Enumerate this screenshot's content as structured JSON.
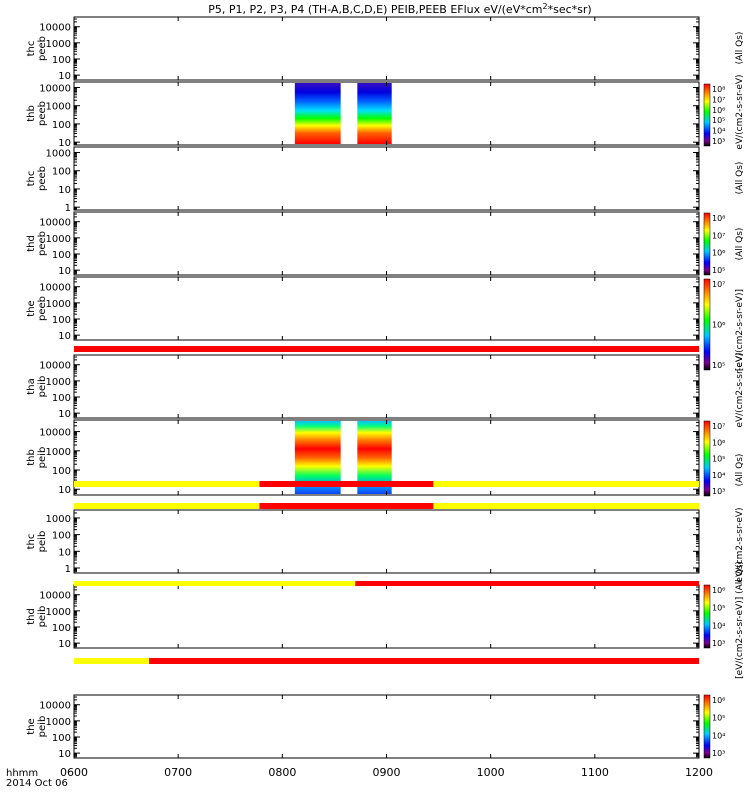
{
  "chart_data": {
    "type": "heatmap",
    "title": "P5, P1, P2, P3, P4 (TH-A,B,C,D,E) PEIB,PEEB EFlux eV/(eV*cm",
    "title_sup": "2",
    "title_tail": "*sec*sr)",
    "x_axis": {
      "labels_header": [
        "hhmm",
        "2014 Oct 06"
      ],
      "ticks": [
        "0600",
        "0700",
        "0800",
        "0900",
        "1000",
        "1100",
        "1200"
      ],
      "range": [
        "0600",
        "1200"
      ]
    },
    "panels": [
      {
        "ylabel": [
          "thc",
          "peeb"
        ],
        "ticks": [
          "10000",
          "1000",
          "100",
          "10"
        ],
        "ylim": [
          5,
          40000
        ],
        "log": true,
        "has_colorbar": false,
        "colorbar_ticks": []
      },
      {
        "ylabel": [
          "thb",
          "peeb"
        ],
        "ticks": [
          "10000",
          "1000",
          "100",
          "10"
        ],
        "ylim": [
          7,
          20000
        ],
        "log": true,
        "has_colorbar": true,
        "colorbar_ticks": [
          "10⁸",
          "10⁷",
          "10⁶",
          "10⁵",
          "10⁴",
          "10³"
        ],
        "data_blocks": [
          {
            "start": "0812",
            "end": "0856"
          },
          {
            "start": "0872",
            "end": "0905"
          }
        ]
      },
      {
        "ylabel": [
          "thc",
          "peeb"
        ],
        "ticks": [
          "1000",
          "100",
          "10",
          "1"
        ],
        "ylim": [
          0.7,
          2000
        ],
        "log": true,
        "has_colorbar": false,
        "colorbar_ticks": []
      },
      {
        "ylabel": [
          "thd",
          "peeb"
        ],
        "ticks": [
          "10000",
          "1000",
          "100",
          "10"
        ],
        "ylim": [
          5,
          40000
        ],
        "log": true,
        "has_colorbar": true,
        "colorbar_ticks": [
          "10⁸",
          "10⁷",
          "10⁶",
          "10⁵"
        ]
      },
      {
        "ylabel": [
          "the",
          "peeb"
        ],
        "ticks": [
          "10000",
          "1000",
          "100",
          "10"
        ],
        "ylim": [
          5,
          40000
        ],
        "log": true,
        "has_colorbar": true,
        "colorbar_ticks": [
          "10⁷",
          "10⁶",
          "10⁵"
        ]
      },
      {
        "ylabel": [
          "tha",
          "peib"
        ],
        "ticks": [
          "10000",
          "1000",
          "100",
          "10"
        ],
        "ylim": [
          5,
          40000
        ],
        "log": true,
        "has_colorbar": false,
        "colorbar_ticks": []
      },
      {
        "ylabel": [
          "thb",
          "peib"
        ],
        "ticks": [
          "10000",
          "1000",
          "100",
          "10"
        ],
        "ylim": [
          5,
          40000
        ],
        "log": true,
        "has_colorbar": true,
        "colorbar_ticks": [
          "10⁷",
          "10⁶",
          "10⁵",
          "10⁴",
          "10³"
        ],
        "data_blocks": [
          {
            "start": "0812",
            "end": "0856"
          },
          {
            "start": "0872",
            "end": "0905"
          }
        ]
      },
      {
        "ylabel": [
          "thc",
          "peib"
        ],
        "ticks": [
          "1000",
          "100",
          "10",
          "1"
        ],
        "ylim": [
          0.5,
          3000
        ],
        "log": true,
        "has_colorbar": false,
        "colorbar_ticks": []
      },
      {
        "ylabel": [
          "thd",
          "peib"
        ],
        "ticks": [
          "10000",
          "1000",
          "100",
          "10"
        ],
        "ylim": [
          5,
          40000
        ],
        "log": true,
        "has_colorbar": true,
        "colorbar_ticks": [
          "10⁶",
          "10⁵",
          "10⁴",
          "10³"
        ]
      },
      {
        "ylabel": [
          "the",
          "peib"
        ],
        "ticks": [
          "10000",
          "1000",
          "100",
          "10"
        ],
        "ylim": [
          5,
          40000
        ],
        "log": true,
        "has_colorbar": true,
        "colorbar_ticks": [
          "10⁶",
          "10⁵",
          "10⁴",
          "10³"
        ]
      }
    ],
    "status_bars": [
      {
        "segments": [
          {
            "start": "0600",
            "end": "1200",
            "color": "#ff0000"
          }
        ]
      },
      {
        "segments": [
          {
            "start": "0600",
            "end": "0778",
            "color": "#ffff00"
          },
          {
            "start": "0778",
            "end": "0945",
            "color": "#ff0000"
          },
          {
            "start": "0945",
            "end": "1200",
            "color": "#ffff00"
          }
        ]
      },
      {
        "segments": [
          {
            "start": "0600",
            "end": "0778",
            "color": "#ffff00"
          },
          {
            "start": "0778",
            "end": "0945",
            "color": "#ff0000"
          },
          {
            "start": "0945",
            "end": "1200",
            "color": "#ffff00"
          }
        ]
      },
      {
        "segments": [
          {
            "start": "0600",
            "end": "0870",
            "color": "#ffff00"
          },
          {
            "start": "0870",
            "end": "1200",
            "color": "#ff0000"
          }
        ]
      },
      {
        "segments": [
          {
            "start": "0600",
            "end": "0672",
            "color": "#ffff00"
          },
          {
            "start": "0672",
            "end": "1200",
            "color": "#ff0000"
          }
        ]
      }
    ],
    "side_labels": [
      "(All Qs)",
      "eV/(cm2-s-sr-eV)",
      "(All Qs)",
      "(All Qs)",
      "[eV/(cm2-s-sr-eV)]",
      "eV/(cm2-s-sr-eV)",
      "(All Qs)",
      "eV/(cm2-s-sr-eV)",
      "[eV/(cm2-s-sr-eV)] (All Qs)"
    ],
    "colors": {
      "axis": "#000000",
      "yellow": "#ffff00",
      "red": "#ff0000",
      "background": "#ffffff"
    }
  }
}
